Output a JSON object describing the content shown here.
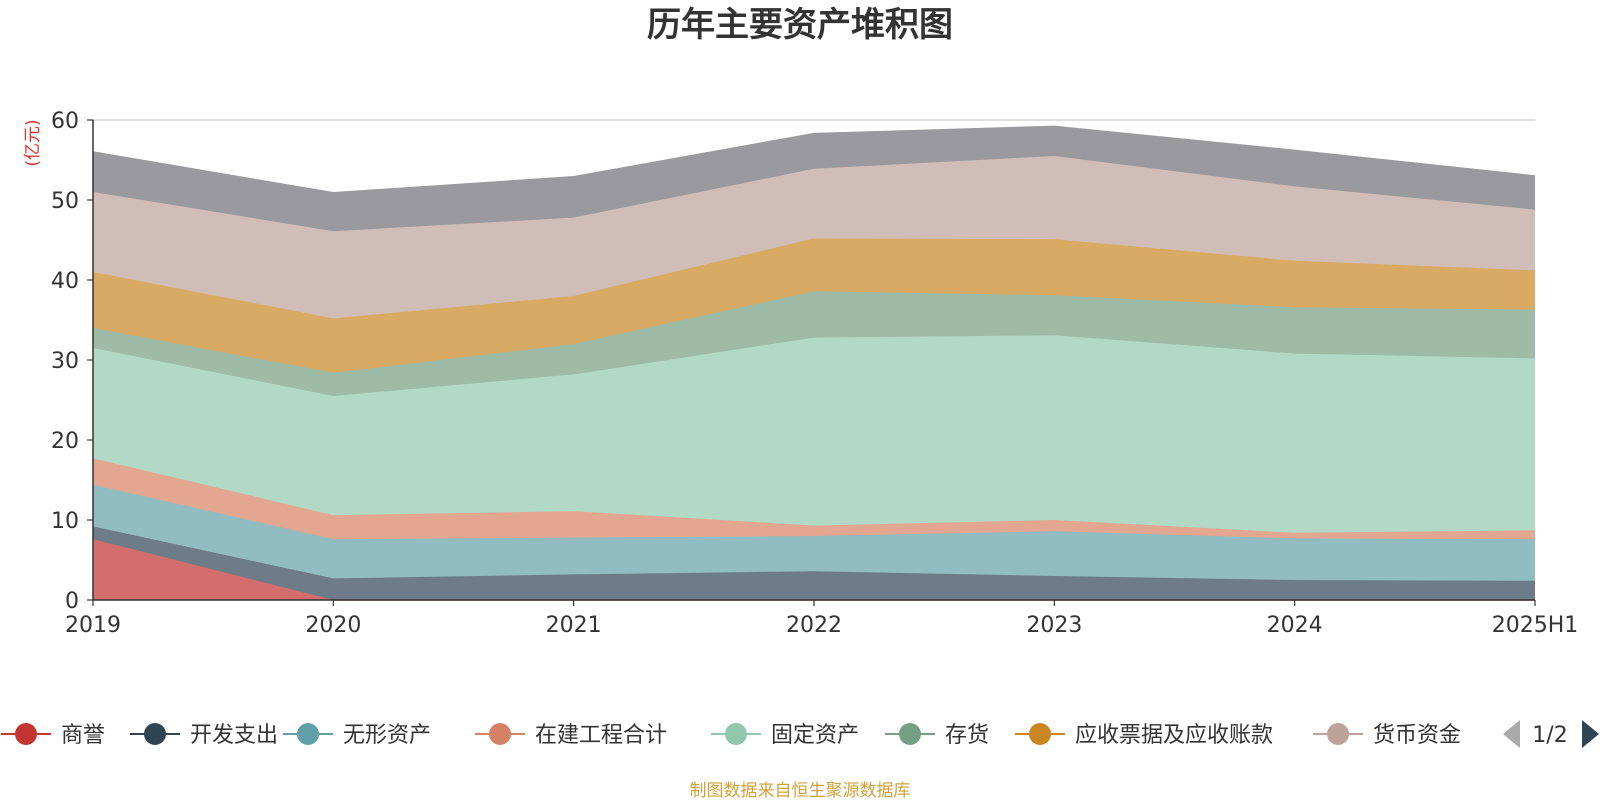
{
  "chart_data": {
    "type": "area",
    "stacked": true,
    "title": "历年主要资产堆积图",
    "y_unit": "(亿元)",
    "ylim": [
      0,
      60
    ],
    "y_ticks": [
      0,
      10,
      20,
      30,
      40,
      50,
      60
    ],
    "grid": true,
    "legend_placement": "bottom",
    "categories": [
      "2019",
      "2020",
      "2021",
      "2022",
      "2023",
      "2024",
      "2025H1"
    ],
    "series": [
      {
        "name": "商誉",
        "color": "#d36e6c",
        "marker": "#c23531",
        "values": [
          7.6,
          0.0,
          0.0,
          0.0,
          0.0,
          0.0,
          0.0
        ]
      },
      {
        "name": "开发支出",
        "color": "#6e7b88",
        "marker": "#2f4554",
        "values": [
          1.6,
          2.7,
          3.2,
          3.6,
          3.0,
          2.5,
          2.4
        ]
      },
      {
        "name": "无形资产",
        "color": "#90bcc2",
        "marker": "#61a0a8",
        "values": [
          5.2,
          4.9,
          4.6,
          4.4,
          5.6,
          5.2,
          5.2
        ]
      },
      {
        "name": "在建工程合计",
        "color": "#e3a690",
        "marker": "#d48265",
        "values": [
          3.3,
          3.0,
          3.3,
          1.3,
          1.4,
          0.7,
          1.1
        ]
      },
      {
        "name": "固定资产",
        "color": "#b2d8c6",
        "marker": "#91c7ae",
        "values": [
          13.8,
          14.9,
          17.1,
          23.5,
          23.1,
          22.4,
          21.5
        ]
      },
      {
        "name": "存货",
        "color": "#9ebba8",
        "marker": "#749f83",
        "values": [
          2.5,
          2.9,
          3.8,
          5.8,
          5.0,
          5.8,
          6.1
        ]
      },
      {
        "name": "应收票据及应收账款",
        "color": "#d9aa64",
        "marker": "#ca8622",
        "values": [
          7.0,
          6.8,
          6.0,
          6.6,
          7.0,
          5.8,
          4.9
        ]
      },
      {
        "name": "货币资金",
        "color": "#d1bdb7",
        "marker": "#bda29a",
        "values": [
          10.0,
          10.9,
          9.8,
          8.7,
          10.4,
          9.3,
          7.6
        ]
      },
      {
        "name": "",
        "color": "#9a9a9e",
        "marker": "#9a9a9e",
        "values": [
          5.0,
          4.8,
          5.1,
          4.4,
          3.7,
          4.5,
          4.2
        ]
      }
    ]
  },
  "legend": {
    "page_indicator": "1/2"
  },
  "source_note": "制图数据来自恒生聚源数据库"
}
